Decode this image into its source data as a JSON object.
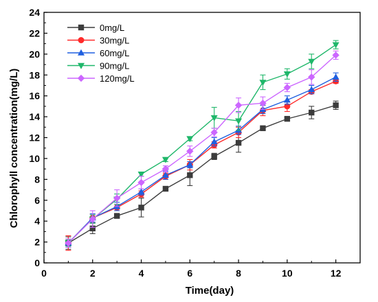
{
  "chart_data": {
    "type": "line",
    "title": "",
    "xlabel": "Time(day)",
    "ylabel": "Chlorophyll concentration(mg/L)",
    "xlim": [
      0,
      13
    ],
    "ylim": [
      0,
      24
    ],
    "x_ticks": [
      0,
      2,
      4,
      6,
      8,
      10,
      12
    ],
    "y_ticks": [
      0,
      2,
      4,
      6,
      8,
      10,
      12,
      14,
      16,
      18,
      20,
      22,
      24
    ],
    "legend_position": "top-left",
    "grid": false,
    "x": [
      1,
      2,
      3,
      4,
      5,
      6,
      7,
      8,
      9,
      10,
      11,
      12
    ],
    "series": [
      {
        "name": "0mg/L",
        "color": "#3c3c3c",
        "marker": "square",
        "values": [
          1.9,
          3.3,
          4.5,
          5.3,
          7.1,
          8.4,
          10.2,
          11.5,
          12.9,
          13.8,
          14.4,
          15.1
        ],
        "errors": [
          0.6,
          0.5,
          0.1,
          0.9,
          0.1,
          1.0,
          0.3,
          0.9,
          0.1,
          0.1,
          0.6,
          0.4
        ]
      },
      {
        "name": "30mg/L",
        "color": "#ff2a2a",
        "marker": "circle",
        "values": [
          1.9,
          4.3,
          5.3,
          6.6,
          8.3,
          9.4,
          11.3,
          12.5,
          14.6,
          15.0,
          16.4,
          17.4
        ],
        "errors": [
          0.7,
          0.4,
          0.3,
          0.3,
          0.3,
          0.5,
          0.3,
          0.5,
          0.5,
          0.5,
          0.2,
          0.2
        ]
      },
      {
        "name": "60mg/L",
        "color": "#1f5fe0",
        "marker": "triangle-up",
        "values": [
          1.9,
          4.3,
          5.4,
          6.8,
          8.4,
          9.4,
          11.6,
          12.7,
          14.7,
          15.6,
          16.6,
          17.8
        ],
        "errors": [
          0.4,
          0.4,
          0.4,
          0.3,
          0.4,
          0.3,
          0.4,
          0.4,
          0.4,
          0.4,
          0.4,
          0.4
        ]
      },
      {
        "name": "90mg/L",
        "color": "#1fb76a",
        "marker": "triangle-down",
        "values": [
          1.9,
          4.2,
          6.1,
          8.5,
          9.9,
          11.9,
          13.9,
          13.6,
          17.3,
          18.1,
          19.3,
          20.9
        ],
        "errors": [
          0.3,
          0.4,
          0.5,
          0.2,
          0.2,
          0.2,
          1.0,
          0.9,
          0.7,
          0.5,
          0.7,
          0.4
        ]
      },
      {
        "name": "120mg/L",
        "color": "#cc66ff",
        "marker": "diamond",
        "values": [
          1.9,
          4.2,
          6.2,
          7.7,
          9.0,
          10.7,
          12.5,
          15.1,
          15.3,
          16.8,
          17.8,
          19.9
        ],
        "errors": [
          0.4,
          0.8,
          0.8,
          0.6,
          0.3,
          0.5,
          0.4,
          0.7,
          0.6,
          0.4,
          0.7,
          0.4
        ]
      }
    ]
  }
}
